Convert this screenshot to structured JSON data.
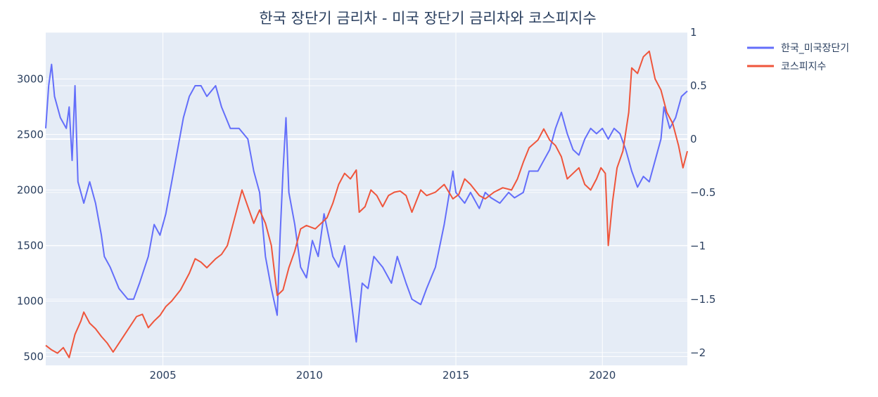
{
  "chart_data": {
    "type": "line",
    "title": "한국 장단기 금리차 - 미국 장단기 금리차와 코스피지수",
    "xlabel": "",
    "ylabel": "",
    "x_ticks": [
      2005,
      2010,
      2015,
      2020
    ],
    "xlim": [
      2001.0,
      2022.9
    ],
    "y_left": {
      "ticks": [
        500,
        1000,
        1500,
        2000,
        2500,
        3000
      ],
      "lim": [
        420,
        3420
      ]
    },
    "y_right": {
      "ticks": [
        "1",
        "0.5",
        "0",
        "−0.5",
        "−1",
        "−1.5",
        "−2"
      ],
      "tick_values": [
        1,
        0.5,
        0,
        -0.5,
        -1,
        -1.5,
        -2
      ],
      "lim": [
        -2.12,
        1.0
      ]
    },
    "grid": true,
    "legend_position": "top-right, outside plot",
    "series": [
      {
        "name": "한국_미국장단기",
        "axis": "right",
        "color": "#636efa",
        "points": [
          [
            2001.0,
            0.1
          ],
          [
            2001.1,
            0.5
          ],
          [
            2001.2,
            0.7
          ],
          [
            2001.3,
            0.4
          ],
          [
            2001.5,
            0.2
          ],
          [
            2001.7,
            0.1
          ],
          [
            2001.8,
            0.3
          ],
          [
            2001.9,
            -0.2
          ],
          [
            2002.0,
            0.5
          ],
          [
            2002.1,
            -0.4
          ],
          [
            2002.3,
            -0.6
          ],
          [
            2002.5,
            -0.4
          ],
          [
            2002.7,
            -0.6
          ],
          [
            2002.9,
            -0.9
          ],
          [
            2003.0,
            -1.1
          ],
          [
            2003.2,
            -1.2
          ],
          [
            2003.5,
            -1.4
          ],
          [
            2003.8,
            -1.5
          ],
          [
            2004.0,
            -1.5
          ],
          [
            2004.2,
            -1.35
          ],
          [
            2004.5,
            -1.1
          ],
          [
            2004.7,
            -0.8
          ],
          [
            2004.9,
            -0.9
          ],
          [
            2005.1,
            -0.7
          ],
          [
            2005.3,
            -0.4
          ],
          [
            2005.5,
            -0.1
          ],
          [
            2005.7,
            0.2
          ],
          [
            2005.9,
            0.4
          ],
          [
            2006.1,
            0.5
          ],
          [
            2006.3,
            0.5
          ],
          [
            2006.5,
            0.4
          ],
          [
            2006.8,
            0.5
          ],
          [
            2007.0,
            0.3
          ],
          [
            2007.3,
            0.1
          ],
          [
            2007.6,
            0.1
          ],
          [
            2007.9,
            0.0
          ],
          [
            2008.1,
            -0.3
          ],
          [
            2008.3,
            -0.5
          ],
          [
            2008.5,
            -1.1
          ],
          [
            2008.7,
            -1.4
          ],
          [
            2008.9,
            -1.65
          ],
          [
            2009.0,
            -0.9
          ],
          [
            2009.1,
            -0.3
          ],
          [
            2009.2,
            0.2
          ],
          [
            2009.3,
            -0.5
          ],
          [
            2009.5,
            -0.8
          ],
          [
            2009.7,
            -1.2
          ],
          [
            2009.9,
            -1.3
          ],
          [
            2010.1,
            -0.95
          ],
          [
            2010.3,
            -1.1
          ],
          [
            2010.5,
            -0.7
          ],
          [
            2010.8,
            -1.1
          ],
          [
            2011.0,
            -1.2
          ],
          [
            2011.2,
            -1.0
          ],
          [
            2011.4,
            -1.45
          ],
          [
            2011.6,
            -1.9
          ],
          [
            2011.8,
            -1.35
          ],
          [
            2012.0,
            -1.4
          ],
          [
            2012.2,
            -1.1
          ],
          [
            2012.5,
            -1.2
          ],
          [
            2012.8,
            -1.35
          ],
          [
            2013.0,
            -1.1
          ],
          [
            2013.3,
            -1.35
          ],
          [
            2013.5,
            -1.5
          ],
          [
            2013.8,
            -1.55
          ],
          [
            2014.0,
            -1.4
          ],
          [
            2014.3,
            -1.2
          ],
          [
            2014.6,
            -0.8
          ],
          [
            2014.9,
            -0.3
          ],
          [
            2015.0,
            -0.5
          ],
          [
            2015.3,
            -0.6
          ],
          [
            2015.5,
            -0.5
          ],
          [
            2015.8,
            -0.65
          ],
          [
            2016.0,
            -0.5
          ],
          [
            2016.2,
            -0.55
          ],
          [
            2016.5,
            -0.6
          ],
          [
            2016.8,
            -0.5
          ],
          [
            2017.0,
            -0.55
          ],
          [
            2017.3,
            -0.5
          ],
          [
            2017.5,
            -0.3
          ],
          [
            2017.8,
            -0.3
          ],
          [
            2018.0,
            -0.2
          ],
          [
            2018.2,
            -0.1
          ],
          [
            2018.4,
            0.1
          ],
          [
            2018.6,
            0.25
          ],
          [
            2018.8,
            0.05
          ],
          [
            2019.0,
            -0.1
          ],
          [
            2019.2,
            -0.15
          ],
          [
            2019.4,
            0.0
          ],
          [
            2019.6,
            0.1
          ],
          [
            2019.8,
            0.05
          ],
          [
            2020.0,
            0.1
          ],
          [
            2020.2,
            0.0
          ],
          [
            2020.4,
            0.1
          ],
          [
            2020.6,
            0.05
          ],
          [
            2020.8,
            -0.1
          ],
          [
            2021.0,
            -0.3
          ],
          [
            2021.2,
            -0.45
          ],
          [
            2021.4,
            -0.35
          ],
          [
            2021.6,
            -0.4
          ],
          [
            2021.8,
            -0.2
          ],
          [
            2022.0,
            0.0
          ],
          [
            2022.1,
            0.3
          ],
          [
            2022.3,
            0.1
          ],
          [
            2022.5,
            0.2
          ],
          [
            2022.7,
            0.4
          ],
          [
            2022.9,
            0.45
          ]
        ]
      },
      {
        "name": "코스피지수",
        "axis": "left",
        "color": "#ef553b",
        "points": [
          [
            2001.0,
            600
          ],
          [
            2001.2,
            560
          ],
          [
            2001.4,
            530
          ],
          [
            2001.6,
            580
          ],
          [
            2001.8,
            490
          ],
          [
            2002.0,
            700
          ],
          [
            2002.2,
            820
          ],
          [
            2002.3,
            900
          ],
          [
            2002.5,
            800
          ],
          [
            2002.7,
            750
          ],
          [
            2002.9,
            680
          ],
          [
            2003.1,
            620
          ],
          [
            2003.3,
            540
          ],
          [
            2003.5,
            620
          ],
          [
            2003.7,
            700
          ],
          [
            2003.9,
            780
          ],
          [
            2004.1,
            860
          ],
          [
            2004.3,
            880
          ],
          [
            2004.5,
            760
          ],
          [
            2004.7,
            820
          ],
          [
            2004.9,
            870
          ],
          [
            2005.1,
            950
          ],
          [
            2005.3,
            1000
          ],
          [
            2005.6,
            1100
          ],
          [
            2005.9,
            1250
          ],
          [
            2006.1,
            1380
          ],
          [
            2006.3,
            1350
          ],
          [
            2006.5,
            1300
          ],
          [
            2006.8,
            1380
          ],
          [
            2007.0,
            1420
          ],
          [
            2007.2,
            1500
          ],
          [
            2007.5,
            1800
          ],
          [
            2007.7,
            2000
          ],
          [
            2007.9,
            1850
          ],
          [
            2008.1,
            1700
          ],
          [
            2008.3,
            1820
          ],
          [
            2008.5,
            1700
          ],
          [
            2008.7,
            1500
          ],
          [
            2008.9,
            1050
          ],
          [
            2009.1,
            1100
          ],
          [
            2009.3,
            1300
          ],
          [
            2009.5,
            1450
          ],
          [
            2009.7,
            1650
          ],
          [
            2009.9,
            1680
          ],
          [
            2010.2,
            1650
          ],
          [
            2010.4,
            1700
          ],
          [
            2010.6,
            1750
          ],
          [
            2010.8,
            1880
          ],
          [
            2011.0,
            2050
          ],
          [
            2011.2,
            2150
          ],
          [
            2011.4,
            2100
          ],
          [
            2011.6,
            2180
          ],
          [
            2011.7,
            1800
          ],
          [
            2011.9,
            1850
          ],
          [
            2012.1,
            2000
          ],
          [
            2012.3,
            1950
          ],
          [
            2012.5,
            1850
          ],
          [
            2012.7,
            1950
          ],
          [
            2012.9,
            1980
          ],
          [
            2013.1,
            1990
          ],
          [
            2013.3,
            1950
          ],
          [
            2013.5,
            1800
          ],
          [
            2013.8,
            2000
          ],
          [
            2014.0,
            1950
          ],
          [
            2014.3,
            1980
          ],
          [
            2014.6,
            2050
          ],
          [
            2014.9,
            1920
          ],
          [
            2015.1,
            1960
          ],
          [
            2015.3,
            2100
          ],
          [
            2015.5,
            2050
          ],
          [
            2015.8,
            1950
          ],
          [
            2016.0,
            1920
          ],
          [
            2016.3,
            1980
          ],
          [
            2016.6,
            2020
          ],
          [
            2016.9,
            2000
          ],
          [
            2017.1,
            2100
          ],
          [
            2017.3,
            2250
          ],
          [
            2017.5,
            2380
          ],
          [
            2017.8,
            2450
          ],
          [
            2018.0,
            2550
          ],
          [
            2018.2,
            2450
          ],
          [
            2018.4,
            2400
          ],
          [
            2018.6,
            2300
          ],
          [
            2018.8,
            2100
          ],
          [
            2019.0,
            2150
          ],
          [
            2019.2,
            2200
          ],
          [
            2019.4,
            2050
          ],
          [
            2019.6,
            2000
          ],
          [
            2019.8,
            2100
          ],
          [
            2019.95,
            2200
          ],
          [
            2020.1,
            2150
          ],
          [
            2020.2,
            1500
          ],
          [
            2020.35,
            1900
          ],
          [
            2020.5,
            2200
          ],
          [
            2020.7,
            2350
          ],
          [
            2020.9,
            2700
          ],
          [
            2021.0,
            3100
          ],
          [
            2021.2,
            3050
          ],
          [
            2021.4,
            3200
          ],
          [
            2021.6,
            3250
          ],
          [
            2021.8,
            3000
          ],
          [
            2022.0,
            2900
          ],
          [
            2022.2,
            2700
          ],
          [
            2022.4,
            2600
          ],
          [
            2022.6,
            2400
          ],
          [
            2022.75,
            2200
          ],
          [
            2022.9,
            2350
          ]
        ]
      }
    ]
  }
}
